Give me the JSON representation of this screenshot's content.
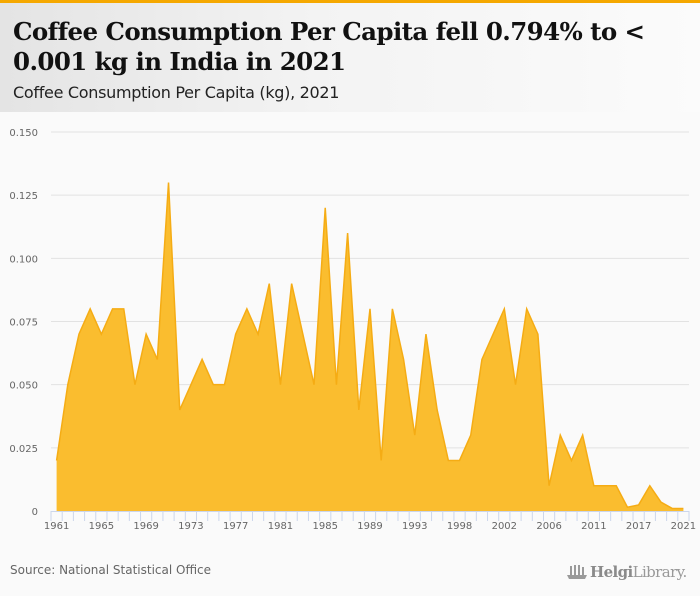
{
  "header": {
    "title": "Coffee Consumption Per Capita fell 0.794% to < 0.001 kg in India in 2021",
    "subtitle": "Coffee Consumption Per Capita (kg), 2021"
  },
  "footer": {
    "source": "Source: National Statistical Office",
    "logo_bold": "Helgi",
    "logo_light": "Library."
  },
  "colors": {
    "accent": "#f5a800",
    "area_fill": "#fabd2f",
    "area_line": "#f5ac14",
    "grid": "#e2e2e2",
    "axis": "#ccd6eb"
  },
  "chart_data": {
    "type": "area",
    "title": "Coffee Consumption Per Capita fell 0.794% to < 0.001 kg in India in 2021",
    "subtitle": "Coffee Consumption Per Capita (kg), 2021",
    "xlabel": "",
    "ylabel": "",
    "ylim": [
      0,
      0.15
    ],
    "yticks": [
      0,
      0.025,
      0.05,
      0.075,
      0.1,
      0.125,
      0.15
    ],
    "ytick_labels": [
      "0",
      "0.025",
      "0.050",
      "0.075",
      "0.100",
      "0.125",
      "0.150"
    ],
    "grid": true,
    "legend": "none",
    "x_labels_shown": [
      "1961",
      "1965",
      "1969",
      "1973",
      "1977",
      "1981",
      "1985",
      "1989",
      "1993",
      "1998",
      "2002",
      "2006",
      "2011",
      "2017",
      "2021"
    ],
    "label_every": 4,
    "categories": [
      "1961",
      "1962",
      "1963",
      "1964",
      "1965",
      "1966",
      "1967",
      "1968",
      "1969",
      "1970",
      "1971",
      "1972",
      "1973",
      "1974",
      "1975",
      "1976",
      "1977",
      "1978",
      "1979",
      "1980",
      "1981",
      "1982",
      "1983",
      "1984",
      "1985",
      "1986",
      "1987",
      "1988",
      "1989",
      "1990",
      "1991",
      "1992",
      "1993",
      "1994",
      "1995",
      "1996",
      "1998",
      "1999",
      "2000",
      "2001",
      "2002",
      "2003",
      "2004",
      "2005",
      "2006",
      "2007",
      "2008",
      "2009",
      "2011",
      "2012",
      "2013",
      "2014",
      "2017",
      "2018",
      "2019",
      "2020",
      "2021"
    ],
    "series": [
      {
        "name": "Coffee Consumption Per Capita (kg)",
        "values": [
          0.02,
          0.05,
          0.07,
          0.08,
          0.07,
          0.08,
          0.08,
          0.05,
          0.07,
          0.06,
          0.13,
          0.04,
          0.05,
          0.06,
          0.05,
          0.05,
          0.07,
          0.08,
          0.07,
          0.09,
          0.05,
          0.09,
          0.07,
          0.05,
          0.12,
          0.05,
          0.11,
          0.04,
          0.08,
          0.02,
          0.08,
          0.06,
          0.03,
          0.07,
          0.04,
          0.02,
          0.02,
          0.03,
          0.06,
          0.07,
          0.08,
          0.05,
          0.08,
          0.07,
          0.01,
          0.03,
          0.02,
          0.03,
          0.01,
          0.01,
          0.01,
          0.0015,
          0.0024,
          0.01,
          0.0035,
          0.001006,
          0.000998
        ]
      }
    ]
  }
}
